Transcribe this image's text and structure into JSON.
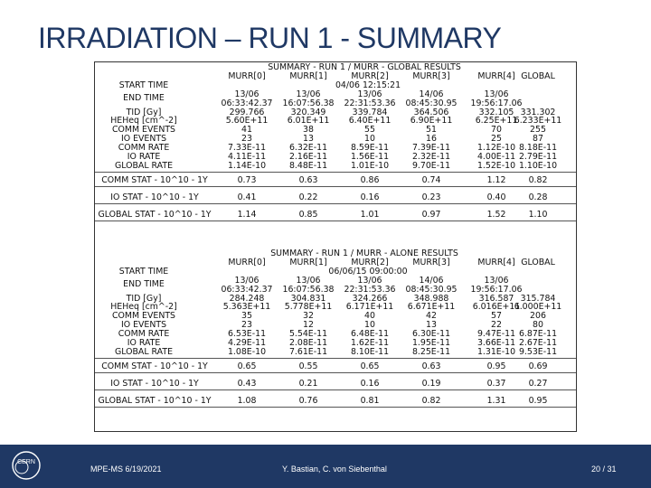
{
  "title": "IRRADIATION – RUN 1 - SUMMARY",
  "global": {
    "heading": "SUMMARY - RUN 1 / MURR - GLOBAL RESULTS",
    "columns": [
      "MURR[0]",
      "MURR[1]",
      "MURR[2]",
      "MURR[3]",
      "MURR[4]",
      "GLOBAL"
    ],
    "start_time_label": "START TIME",
    "start_time_value": "04/06 12:15:21",
    "end_time_label": "END TIME",
    "end_date": [
      "13/06",
      "13/06",
      "13/06",
      "14/06",
      "13/06"
    ],
    "end_clock": [
      "06:33:42.37",
      "16:07:56.38",
      "22:31:53.36",
      "08:45:30.95",
      "19:56:17.06"
    ],
    "row_labels": [
      "TID [Gy]",
      "HEHeq [cm^-2]",
      "COMM EVENTS",
      "IO EVENTS",
      "COMM RATE",
      "IO RATE",
      "GLOBAL RATE"
    ],
    "rows": [
      [
        "299.766",
        "320.349",
        "339.784",
        "364.506",
        "332.105",
        "331.302"
      ],
      [
        "5.60E+11",
        "6.01E+11",
        "6.40E+11",
        "6.90E+11",
        "6.25E+11",
        "6.233E+11"
      ],
      [
        "41",
        "38",
        "55",
        "51",
        "70",
        "255"
      ],
      [
        "23",
        "13",
        "10",
        "16",
        "25",
        "87"
      ],
      [
        "7.33E-11",
        "6.32E-11",
        "8.59E-11",
        "7.39E-11",
        "1.12E-10",
        "8.18E-11"
      ],
      [
        "4.11E-11",
        "2.16E-11",
        "1.56E-11",
        "2.32E-11",
        "4.00E-11",
        "2.79E-11"
      ],
      [
        "1.14E-10",
        "8.48E-11",
        "1.01E-10",
        "9.70E-11",
        "1.52E-10",
        "1.10E-10"
      ]
    ],
    "stats": [
      {
        "label": "COMM STAT - 10^10 - 1Y",
        "values": [
          "0.73",
          "0.63",
          "0.86",
          "0.74",
          "1.12",
          "0.82"
        ]
      },
      {
        "label": "IO STAT - 10^10 - 1Y",
        "values": [
          "0.41",
          "0.22",
          "0.16",
          "0.23",
          "0.40",
          "0.28"
        ]
      },
      {
        "label": "GLOBAL STAT - 10^10 - 1Y",
        "values": [
          "1.14",
          "0.85",
          "1.01",
          "0.97",
          "1.52",
          "1.10"
        ]
      }
    ]
  },
  "alone": {
    "heading": "SUMMARY - RUN 1 / MURR - ALONE RESULTS",
    "columns": [
      "MURR[0]",
      "MURR[1]",
      "MURR[2]",
      "MURR[3]",
      "MURR[4]",
      "GLOBAL"
    ],
    "start_time_label": "START TIME",
    "start_time_value": "06/06/15 09:00:00",
    "end_time_label": "END TIME",
    "end_date": [
      "13/06",
      "13/06",
      "13/06",
      "14/06",
      "13/06"
    ],
    "end_clock": [
      "06:33:42.37",
      "16:07:56.38",
      "22:31:53.36",
      "08:45:30.95",
      "19:56:17.06"
    ],
    "row_labels": [
      "TID [Gy]",
      "HEHeq [cm^-2]",
      "COMM EVENTS",
      "IO EVENTS",
      "COMM RATE",
      "IO RATE",
      "GLOBAL RATE"
    ],
    "rows": [
      [
        "284.248",
        "304.831",
        "324.266",
        "348.988",
        "316.587",
        "315.784"
      ],
      [
        "5.363E+11",
        "5.778E+11",
        "6.171E+11",
        "6.671E+11",
        "6.016E+11",
        "6.000E+11"
      ],
      [
        "35",
        "32",
        "40",
        "42",
        "57",
        "206"
      ],
      [
        "23",
        "12",
        "10",
        "13",
        "22",
        "80"
      ],
      [
        "6.53E-11",
        "5.54E-11",
        "6.48E-11",
        "6.30E-11",
        "9.47E-11",
        "6.87E-11"
      ],
      [
        "4.29E-11",
        "2.08E-11",
        "1.62E-11",
        "1.95E-11",
        "3.66E-11",
        "2.67E-11"
      ],
      [
        "1.08E-10",
        "7.61E-11",
        "8.10E-11",
        "8.25E-11",
        "1.31E-10",
        "9.53E-11"
      ]
    ],
    "stats": [
      {
        "label": "COMM STAT - 10^10 - 1Y",
        "values": [
          "0.65",
          "0.55",
          "0.65",
          "0.63",
          "0.95",
          "0.69"
        ]
      },
      {
        "label": "IO STAT - 10^10 - 1Y",
        "values": [
          "0.43",
          "0.21",
          "0.16",
          "0.19",
          "0.37",
          "0.27"
        ]
      },
      {
        "label": "GLOBAL STAT - 10^10 - 1Y",
        "values": [
          "1.08",
          "0.76",
          "0.81",
          "0.82",
          "1.31",
          "0.95"
        ]
      }
    ]
  },
  "footer": {
    "left": "MPE-MS 6/19/2021",
    "center": "Y. Bastian, C. von Siebenthal",
    "right": "20 / 31",
    "logo_text": "CERN"
  },
  "colors": {
    "title": "#1f3864",
    "footer_bg": "#1f3864",
    "footer_text": "#ffffff"
  },
  "icons": {
    "logo": "cern-logo-icon"
  }
}
